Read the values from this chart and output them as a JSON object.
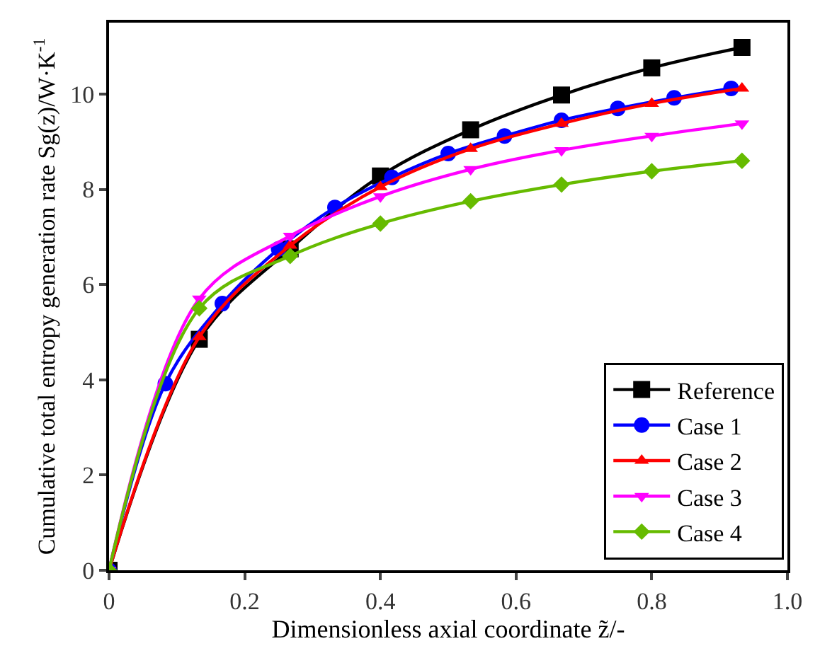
{
  "chart_data": {
    "type": "line",
    "xlabel": "Dimensionless axial coordinate z̃/-",
    "ylabel": "Cumulative total entropy generation rate Sg(z)/W·K$^{-1}$",
    "xlim": [
      0,
      1
    ],
    "ylim": [
      0,
      11.5
    ],
    "xticks": [
      0,
      0.2,
      0.4,
      0.6,
      0.8,
      {
        "value": 1,
        "label": "1.0"
      }
    ],
    "yticks": [
      0,
      2,
      4,
      6,
      8,
      10
    ],
    "legend": "bottom right",
    "series": [
      {
        "name": "Reference",
        "color": "#000000",
        "marker": "square",
        "x": [
          0,
          0.133,
          0.267,
          0.4,
          0.533,
          0.667,
          0.8,
          0.933
        ],
        "values": [
          0,
          4.85,
          6.75,
          8.28,
          9.25,
          9.98,
          10.55,
          10.98
        ]
      },
      {
        "name": "Case 1",
        "color": "#0000ff",
        "marker": "circle",
        "x": [
          0,
          0.083,
          0.167,
          0.25,
          0.333,
          0.417,
          0.5,
          0.583,
          0.667,
          0.75,
          0.833,
          0.917
        ],
        "values": [
          0,
          3.92,
          5.6,
          6.75,
          7.62,
          8.25,
          8.75,
          9.12,
          9.45,
          9.7,
          9.92,
          10.12
        ]
      },
      {
        "name": "Case 2",
        "color": "#ff0000",
        "marker": "triangle",
        "x": [
          0,
          0.133,
          0.267,
          0.4,
          0.533,
          0.667,
          0.8,
          0.933
        ],
        "values": [
          0,
          4.9,
          6.82,
          8.05,
          8.85,
          9.38,
          9.8,
          10.12
        ]
      },
      {
        "name": "Case 3",
        "color": "#ff00ff",
        "marker": "triangle-down",
        "x": [
          0,
          0.133,
          0.267,
          0.4,
          0.533,
          0.667,
          0.8,
          0.933
        ],
        "values": [
          0,
          5.7,
          7.02,
          7.85,
          8.42,
          8.82,
          9.12,
          9.38
        ]
      },
      {
        "name": "Case 4",
        "color": "#66bb00",
        "marker": "diamond",
        "x": [
          0,
          0.133,
          0.267,
          0.4,
          0.533,
          0.667,
          0.8,
          0.933
        ],
        "values": [
          0,
          5.5,
          6.6,
          7.28,
          7.75,
          8.1,
          8.38,
          8.6
        ]
      }
    ]
  }
}
